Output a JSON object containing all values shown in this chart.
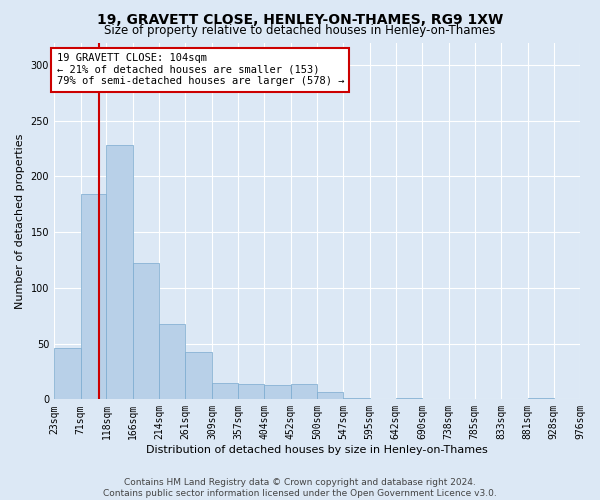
{
  "title": "19, GRAVETT CLOSE, HENLEY-ON-THAMES, RG9 1XW",
  "subtitle": "Size of property relative to detached houses in Henley-on-Thames",
  "xlabel": "Distribution of detached houses by size in Henley-on-Thames",
  "ylabel": "Number of detached properties",
  "footer_line1": "Contains HM Land Registry data © Crown copyright and database right 2024.",
  "footer_line2": "Contains public sector information licensed under the Open Government Licence v3.0.",
  "annotation_line1": "19 GRAVETT CLOSE: 104sqm",
  "annotation_line2": "← 21% of detached houses are smaller (153)",
  "annotation_line3": "79% of semi-detached houses are larger (578) →",
  "property_size": 104,
  "bar_color": "#b8d0e8",
  "bar_edge_color": "#7aaacf",
  "red_line_color": "#cc0000",
  "bg_color": "#dce8f5",
  "plot_bg_color": "#dce8f5",
  "bin_edges": [
    23,
    71,
    118,
    166,
    214,
    261,
    309,
    357,
    404,
    452,
    500,
    547,
    595,
    642,
    690,
    738,
    785,
    833,
    881,
    928,
    976
  ],
  "bar_heights": [
    46,
    184,
    228,
    122,
    68,
    42,
    15,
    14,
    13,
    14,
    7,
    1,
    0,
    1,
    0,
    0,
    0,
    0,
    1,
    0
  ],
  "ylim": [
    0,
    320
  ],
  "yticks": [
    0,
    50,
    100,
    150,
    200,
    250,
    300
  ],
  "grid_color": "#ffffff",
  "title_fontsize": 10,
  "subtitle_fontsize": 8.5,
  "annotation_fontsize": 7.5,
  "tick_fontsize": 7,
  "ylabel_fontsize": 8,
  "xlabel_fontsize": 8,
  "footer_fontsize": 6.5
}
